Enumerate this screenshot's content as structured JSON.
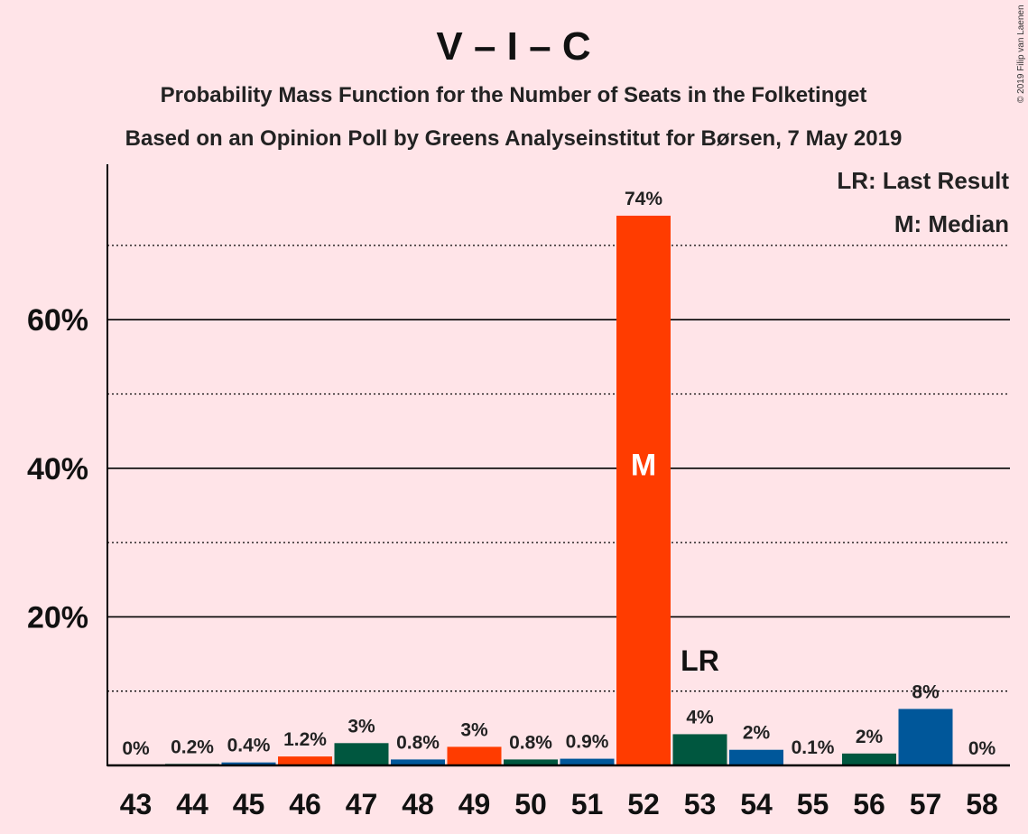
{
  "chart_data": {
    "type": "bar",
    "title": "V – I – C",
    "subtitle_line1": "Probability Mass Function for the Number of Seats in the Folketinget",
    "subtitle_line2": "Based on an Opinion Poll by Greens Analyseinstitut for Børsen, 7 May 2019",
    "copyright": "© 2019 Filip van Laenen",
    "legend": {
      "last_result": "LR: Last Result",
      "median": "M: Median",
      "placement": "top-right"
    },
    "xlabel": "",
    "ylabel": "",
    "ylim": [
      0,
      80
    ],
    "yticks_major": [
      20,
      40,
      60
    ],
    "ytick_labels": [
      "20%",
      "40%",
      "60%"
    ],
    "yticks_minor": [
      10,
      30,
      50,
      70
    ],
    "categories": [
      "43",
      "44",
      "45",
      "46",
      "47",
      "48",
      "49",
      "50",
      "51",
      "52",
      "53",
      "54",
      "55",
      "56",
      "57",
      "58"
    ],
    "values": [
      0,
      0.2,
      0.4,
      1.2,
      3,
      0.8,
      2.5,
      0.8,
      0.9,
      74,
      4.2,
      2.1,
      0.1,
      1.6,
      7.6,
      0
    ],
    "value_labels": [
      "0%",
      "0.2%",
      "0.4%",
      "1.2%",
      "3%",
      "0.8%",
      "3%",
      "0.8%",
      "0.9%",
      "74%",
      "4%",
      "2%",
      "0.1%",
      "2%",
      "8%",
      "0%"
    ],
    "colors": [
      "#00573F",
      "#00573F",
      "#00579A",
      "#FF3C00",
      "#00573F",
      "#00579A",
      "#FF3C00",
      "#00573F",
      "#00579A",
      "#FF3C00",
      "#00573F",
      "#00579A",
      "#FF3C00",
      "#00573F",
      "#00579A",
      "#FF3C00"
    ],
    "median_category": "52",
    "median_marker": "M",
    "last_result_category": "53",
    "last_result_marker": "LR",
    "grid": true
  }
}
